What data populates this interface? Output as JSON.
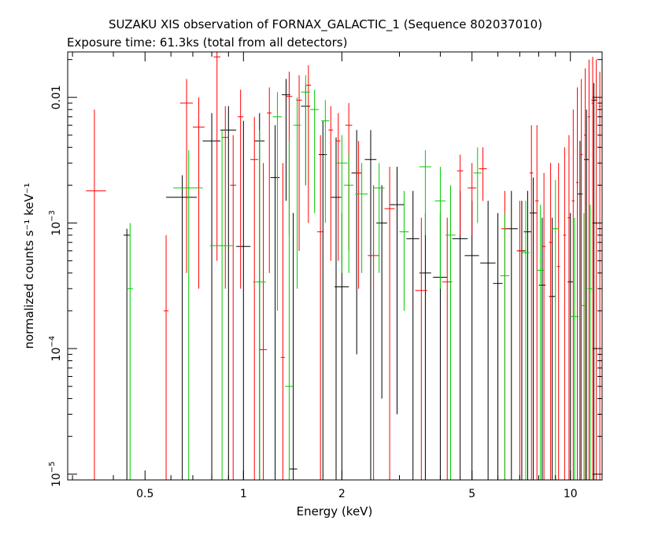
{
  "title_line1": "SUZAKU XIS observation of FORNAX_GALACTIC_1 (Sequence 802037010)",
  "title_line2": "Exposure time: 61.3ks (total from all detectors)",
  "chart_data": {
    "type": "scatter",
    "title": "SUZAKU XIS observation of FORNAX_GALACTIC_1 (Sequence 802037010)",
    "subtitle": "Exposure time: 61.3ks (total from all detectors)",
    "xlabel": "Energy (keV)",
    "ylabel": "normalized counts s⁻¹ keV⁻¹",
    "xscale": "log",
    "yscale": "log",
    "xlim": [
      0.29,
      12.5
    ],
    "ylim": [
      9e-06,
      0.023
    ],
    "xticks": [
      {
        "value": 0.5,
        "label": "0.5"
      },
      {
        "value": 1,
        "label": "1"
      },
      {
        "value": 2,
        "label": "2"
      },
      {
        "value": 5,
        "label": "5"
      },
      {
        "value": 10,
        "label": "10"
      }
    ],
    "yticks": [
      {
        "value": 1e-05,
        "base": "10",
        "exp": "−5"
      },
      {
        "value": 0.0001,
        "base": "10",
        "exp": "−4"
      },
      {
        "value": 0.001,
        "base": "10",
        "exp": "−3"
      },
      {
        "value": 0.01,
        "label": "0.01"
      }
    ],
    "grid": false,
    "series": [
      {
        "color": "#000000",
        "points": [
          {
            "x": 0.44,
            "xlo": 0.43,
            "xhi": 0.45,
            "y": 0.0008,
            "ylo": 9e-06,
            "yhi": 0.0009
          },
          {
            "x": 0.65,
            "xlo": 0.58,
            "xhi": 0.72,
            "y": 0.0016,
            "ylo": 9e-06,
            "yhi": 0.0024
          },
          {
            "x": 0.8,
            "xlo": 0.75,
            "xhi": 0.85,
            "y": 0.0045,
            "ylo": 9e-06,
            "yhi": 0.0075
          },
          {
            "x": 0.9,
            "xlo": 0.85,
            "xhi": 0.95,
            "y": 0.0055,
            "ylo": 9e-06,
            "yhi": 0.0085
          },
          {
            "x": 1.0,
            "xlo": 0.95,
            "xhi": 1.05,
            "y": 0.00065,
            "ylo": 9e-06,
            "yhi": 0.0065
          },
          {
            "x": 1.12,
            "xlo": 1.08,
            "xhi": 1.16,
            "y": 0.0045,
            "ylo": 9e-06,
            "yhi": 0.0075
          },
          {
            "x": 1.25,
            "xlo": 1.21,
            "xhi": 1.29,
            "y": 0.0023,
            "ylo": 9e-06,
            "yhi": 0.006
          },
          {
            "x": 1.35,
            "xlo": 1.31,
            "xhi": 1.39,
            "y": 0.0105,
            "ylo": 0.0015,
            "yhi": 0.014
          },
          {
            "x": 1.42,
            "xlo": 1.38,
            "xhi": 1.46,
            "y": 1.1e-05,
            "ylo": 9e-06,
            "yhi": 0.0012
          },
          {
            "x": 1.55,
            "xlo": 1.5,
            "xhi": 1.6,
            "y": 0.0085,
            "ylo": 0.002,
            "yhi": 0.0125
          },
          {
            "x": 1.75,
            "xlo": 1.7,
            "xhi": 1.8,
            "y": 0.0035,
            "ylo": 9e-06,
            "yhi": 0.0065
          },
          {
            "x": 1.92,
            "xlo": 1.85,
            "xhi": 1.99,
            "y": 0.0016,
            "ylo": 9e-06,
            "yhi": 0.0048
          },
          {
            "x": 2.0,
            "xlo": 1.9,
            "xhi": 2.1,
            "y": 0.00031,
            "ylo": 9e-06,
            "yhi": 0.0012
          },
          {
            "x": 2.22,
            "xlo": 2.14,
            "xhi": 2.3,
            "y": 0.0025,
            "ylo": 9e-05,
            "yhi": 0.0055
          },
          {
            "x": 2.45,
            "xlo": 2.35,
            "xhi": 2.55,
            "y": 0.0032,
            "ylo": 9e-06,
            "yhi": 0.0055
          },
          {
            "x": 2.65,
            "xlo": 2.55,
            "xhi": 2.75,
            "y": 0.001,
            "ylo": 4e-05,
            "yhi": 0.002
          },
          {
            "x": 2.95,
            "xlo": 2.8,
            "xhi": 3.1,
            "y": 0.0014,
            "ylo": 3e-05,
            "yhi": 0.0028
          },
          {
            "x": 3.3,
            "xlo": 3.15,
            "xhi": 3.45,
            "y": 0.00075,
            "ylo": 9e-06,
            "yhi": 0.0018
          },
          {
            "x": 3.6,
            "xlo": 3.45,
            "xhi": 3.75,
            "y": 0.0004,
            "ylo": 9e-06,
            "yhi": 0.0012
          },
          {
            "x": 4.0,
            "xlo": 3.8,
            "xhi": 4.2,
            "y": 0.00037,
            "ylo": 9e-06,
            "yhi": 0.0012
          },
          {
            "x": 4.6,
            "xlo": 4.35,
            "xhi": 4.85,
            "y": 0.00075,
            "ylo": 9e-06,
            "yhi": 0.0018
          },
          {
            "x": 5.0,
            "xlo": 4.75,
            "xhi": 5.25,
            "y": 0.00055,
            "ylo": 9e-06,
            "yhi": 0.0015
          },
          {
            "x": 5.6,
            "xlo": 5.3,
            "xhi": 5.9,
            "y": 0.00048,
            "ylo": 9e-06,
            "yhi": 0.0015
          },
          {
            "x": 6.0,
            "xlo": 5.8,
            "xhi": 6.2,
            "y": 0.00033,
            "ylo": 9e-06,
            "yhi": 0.0012
          },
          {
            "x": 6.6,
            "xlo": 6.3,
            "xhi": 6.9,
            "y": 0.0009,
            "ylo": 9e-06,
            "yhi": 0.0018
          },
          {
            "x": 7.1,
            "xlo": 6.9,
            "xhi": 7.3,
            "y": 0.0006,
            "ylo": 9e-06,
            "yhi": 0.0015
          },
          {
            "x": 7.4,
            "xlo": 7.2,
            "xhi": 7.6,
            "y": 0.00085,
            "ylo": 9e-06,
            "yhi": 0.0018
          },
          {
            "x": 7.7,
            "xlo": 7.5,
            "xhi": 7.9,
            "y": 0.0012,
            "ylo": 9e-06,
            "yhi": 0.0023
          },
          {
            "x": 8.2,
            "xlo": 8.0,
            "xhi": 8.4,
            "y": 0.00032,
            "ylo": 9e-06,
            "yhi": 0.0011
          },
          {
            "x": 8.8,
            "xlo": 8.6,
            "xhi": 9.0,
            "y": 0.00026,
            "ylo": 9e-06,
            "yhi": 0.0011
          },
          {
            "x": 10.0,
            "xlo": 9.8,
            "xhi": 10.2,
            "y": 0.00034,
            "ylo": 9e-06,
            "yhi": 0.0012
          },
          {
            "x": 10.7,
            "xlo": 10.5,
            "xhi": 10.9,
            "y": 0.0017,
            "ylo": 9e-06,
            "yhi": 0.0045
          },
          {
            "x": 11.2,
            "xlo": 11.0,
            "xhi": 11.4,
            "y": 0.0032,
            "ylo": 9e-06,
            "yhi": 0.008
          },
          {
            "x": 11.8,
            "xlo": 11.6,
            "xhi": 12.0,
            "y": 0.0095,
            "ylo": 9e-06,
            "yhi": 0.013
          }
        ]
      },
      {
        "color": "#ff0000",
        "points": [
          {
            "x": 0.35,
            "xlo": 0.33,
            "xhi": 0.38,
            "y": 0.0018,
            "ylo": 9e-06,
            "yhi": 0.008
          },
          {
            "x": 0.58,
            "xlo": 0.57,
            "xhi": 0.59,
            "y": 0.0002,
            "ylo": 9e-06,
            "yhi": 0.0008
          },
          {
            "x": 0.67,
            "xlo": 0.64,
            "xhi": 0.7,
            "y": 0.009,
            "ylo": 0.0004,
            "yhi": 0.014
          },
          {
            "x": 0.73,
            "xlo": 0.7,
            "xhi": 0.76,
            "y": 0.0058,
            "ylo": 0.0003,
            "yhi": 0.01
          },
          {
            "x": 0.83,
            "xlo": 0.81,
            "xhi": 0.85,
            "y": 0.021,
            "ylo": 0.0005,
            "yhi": 0.023
          },
          {
            "x": 0.88,
            "xlo": 0.86,
            "xhi": 0.9,
            "y": 0.0048,
            "ylo": 0.0003,
            "yhi": 0.0085
          },
          {
            "x": 0.93,
            "xlo": 0.91,
            "xhi": 0.95,
            "y": 0.002,
            "ylo": 9e-06,
            "yhi": 0.005
          },
          {
            "x": 0.98,
            "xlo": 0.96,
            "xhi": 1.0,
            "y": 0.007,
            "ylo": 0.0003,
            "yhi": 0.0115
          },
          {
            "x": 1.08,
            "xlo": 1.05,
            "xhi": 1.11,
            "y": 0.0032,
            "ylo": 9e-06,
            "yhi": 0.007
          },
          {
            "x": 1.15,
            "xlo": 1.12,
            "xhi": 1.18,
            "y": 9.8e-05,
            "ylo": 9e-06,
            "yhi": 0.003
          },
          {
            "x": 1.2,
            "xlo": 1.18,
            "xhi": 1.22,
            "y": 0.0075,
            "ylo": 0.0004,
            "yhi": 0.012
          },
          {
            "x": 1.32,
            "xlo": 1.3,
            "xhi": 1.34,
            "y": 8.5e-05,
            "ylo": 9e-06,
            "yhi": 0.003
          },
          {
            "x": 1.38,
            "xlo": 1.35,
            "xhi": 1.41,
            "y": 0.0102,
            "ylo": 0.0008,
            "yhi": 0.016
          },
          {
            "x": 1.48,
            "xlo": 1.45,
            "xhi": 1.51,
            "y": 0.0095,
            "ylo": 0.0006,
            "yhi": 0.015
          },
          {
            "x": 1.58,
            "xlo": 1.55,
            "xhi": 1.61,
            "y": 0.0125,
            "ylo": 0.001,
            "yhi": 0.018
          },
          {
            "x": 1.72,
            "xlo": 1.68,
            "xhi": 1.76,
            "y": 0.00085,
            "ylo": 9e-06,
            "yhi": 0.005
          },
          {
            "x": 1.85,
            "xlo": 1.82,
            "xhi": 1.88,
            "y": 0.0055,
            "ylo": 0.0005,
            "yhi": 0.0085
          },
          {
            "x": 1.95,
            "xlo": 1.92,
            "xhi": 1.98,
            "y": 0.0045,
            "ylo": 0.0005,
            "yhi": 0.0075
          },
          {
            "x": 2.1,
            "xlo": 2.05,
            "xhi": 2.15,
            "y": 0.006,
            "ylo": 0.0006,
            "yhi": 0.009
          },
          {
            "x": 2.25,
            "xlo": 2.2,
            "xhi": 2.3,
            "y": 0.0025,
            "ylo": 0.0003,
            "yhi": 0.0045
          },
          {
            "x": 2.5,
            "xlo": 2.4,
            "xhi": 2.6,
            "y": 0.00055,
            "ylo": 9e-06,
            "yhi": 0.002
          },
          {
            "x": 2.8,
            "xlo": 2.7,
            "xhi": 2.9,
            "y": 0.0013,
            "ylo": 9e-06,
            "yhi": 0.0028
          },
          {
            "x": 3.5,
            "xlo": 3.35,
            "xhi": 3.65,
            "y": 0.00029,
            "ylo": 9e-06,
            "yhi": 0.0011
          },
          {
            "x": 4.2,
            "xlo": 4.05,
            "xhi": 4.35,
            "y": 0.00034,
            "ylo": 9e-06,
            "yhi": 0.0011
          },
          {
            "x": 4.6,
            "xlo": 4.5,
            "xhi": 4.7,
            "y": 0.0026,
            "ylo": 0.0008,
            "yhi": 0.0035
          },
          {
            "x": 5.0,
            "xlo": 4.85,
            "xhi": 5.15,
            "y": 0.0019,
            "ylo": 0.0008,
            "yhi": 0.003
          },
          {
            "x": 5.4,
            "xlo": 5.25,
            "xhi": 5.55,
            "y": 0.0027,
            "ylo": 0.0015,
            "yhi": 0.004
          },
          {
            "x": 6.3,
            "xlo": 6.15,
            "xhi": 6.45,
            "y": 0.0009,
            "ylo": 9e-06,
            "yhi": 0.0018
          },
          {
            "x": 7.0,
            "xlo": 6.85,
            "xhi": 7.15,
            "y": 0.0006,
            "ylo": 9e-06,
            "yhi": 0.0015
          },
          {
            "x": 7.6,
            "xlo": 7.5,
            "xhi": 7.7,
            "y": 0.0025,
            "ylo": 9e-06,
            "yhi": 0.006
          },
          {
            "x": 7.9,
            "xlo": 7.8,
            "xhi": 8.0,
            "y": 0.0015,
            "ylo": 9e-06,
            "yhi": 0.006
          },
          {
            "x": 8.3,
            "xlo": 8.2,
            "xhi": 8.4,
            "y": 0.00065,
            "ylo": 9e-06,
            "yhi": 0.0025
          },
          {
            "x": 8.7,
            "xlo": 8.6,
            "xhi": 8.8,
            "y": 0.0007,
            "ylo": 9e-06,
            "yhi": 0.003
          },
          {
            "x": 9.2,
            "xlo": 9.1,
            "xhi": 9.3,
            "y": 0.00045,
            "ylo": 9e-06,
            "yhi": 0.003
          },
          {
            "x": 9.6,
            "xlo": 9.5,
            "xhi": 9.7,
            "y": 0.0008,
            "ylo": 9e-06,
            "yhi": 0.004
          },
          {
            "x": 9.9,
            "xlo": 9.8,
            "xhi": 10.0,
            "y": 0.0011,
            "ylo": 9e-06,
            "yhi": 0.005
          },
          {
            "x": 10.2,
            "xlo": 10.1,
            "xhi": 10.3,
            "y": 0.0015,
            "ylo": 9e-06,
            "yhi": 0.008
          },
          {
            "x": 10.5,
            "xlo": 10.4,
            "xhi": 10.6,
            "y": 0.0021,
            "ylo": 9e-06,
            "yhi": 0.012
          },
          {
            "x": 10.8,
            "xlo": 10.7,
            "xhi": 10.9,
            "y": 0.0035,
            "ylo": 9e-06,
            "yhi": 0.014
          },
          {
            "x": 11.1,
            "xlo": 11.0,
            "xhi": 11.2,
            "y": 0.005,
            "ylo": 9e-06,
            "yhi": 0.017
          },
          {
            "x": 11.4,
            "xlo": 11.3,
            "xhi": 11.5,
            "y": 0.007,
            "ylo": 9e-06,
            "yhi": 0.02
          },
          {
            "x": 11.7,
            "xlo": 11.6,
            "xhi": 11.8,
            "y": 0.009,
            "ylo": 9e-06,
            "yhi": 0.021
          },
          {
            "x": 12.0,
            "xlo": 11.9,
            "xhi": 12.1,
            "y": 0.0095,
            "ylo": 9e-06,
            "yhi": 0.02
          },
          {
            "x": 12.3,
            "xlo": 12.2,
            "xhi": 12.4,
            "y": 0.0085,
            "ylo": 9e-06,
            "yhi": 0.016
          }
        ]
      },
      {
        "color": "#00cc00",
        "points": [
          {
            "x": 0.45,
            "xlo": 0.44,
            "xhi": 0.46,
            "y": 0.0003,
            "ylo": 9e-06,
            "yhi": 0.001
          },
          {
            "x": 0.68,
            "xlo": 0.61,
            "xhi": 0.75,
            "y": 0.0019,
            "ylo": 9e-06,
            "yhi": 0.0038
          },
          {
            "x": 0.86,
            "xlo": 0.79,
            "xhi": 0.93,
            "y": 0.00066,
            "ylo": 9e-06,
            "yhi": 0.0055
          },
          {
            "x": 1.12,
            "xlo": 1.07,
            "xhi": 1.17,
            "y": 0.00034,
            "ylo": 9e-06,
            "yhi": 0.0055
          },
          {
            "x": 1.27,
            "xlo": 1.23,
            "xhi": 1.31,
            "y": 0.007,
            "ylo": 0.0002,
            "yhi": 0.011
          },
          {
            "x": 1.38,
            "xlo": 1.34,
            "xhi": 1.42,
            "y": 5e-05,
            "ylo": 9e-06,
            "yhi": 0.0045
          },
          {
            "x": 1.46,
            "xlo": 1.42,
            "xhi": 1.5,
            "y": 0.006,
            "ylo": 0.0003,
            "yhi": 0.01
          },
          {
            "x": 1.55,
            "xlo": 1.5,
            "xhi": 1.6,
            "y": 0.011,
            "ylo": 0.002,
            "yhi": 0.015
          },
          {
            "x": 1.65,
            "xlo": 1.6,
            "xhi": 1.7,
            "y": 0.008,
            "ylo": 0.0012,
            "yhi": 0.0115
          },
          {
            "x": 1.78,
            "xlo": 1.73,
            "xhi": 1.83,
            "y": 0.0065,
            "ylo": 0.001,
            "yhi": 0.0095
          },
          {
            "x": 2.0,
            "xlo": 1.92,
            "xhi": 2.08,
            "y": 0.003,
            "ylo": 0.0004,
            "yhi": 0.005
          },
          {
            "x": 2.1,
            "xlo": 2.03,
            "xhi": 2.17,
            "y": 0.002,
            "ylo": 0.0004,
            "yhi": 0.0035
          },
          {
            "x": 2.3,
            "xlo": 2.2,
            "xhi": 2.4,
            "y": 0.0017,
            "ylo": 0.0004,
            "yhi": 0.003
          },
          {
            "x": 2.6,
            "xlo": 2.5,
            "xhi": 2.7,
            "y": 0.0019,
            "ylo": 0.0004,
            "yhi": 0.003
          },
          {
            "x": 3.1,
            "xlo": 3.0,
            "xhi": 3.2,
            "y": 0.00085,
            "ylo": 0.0002,
            "yhi": 0.0018
          },
          {
            "x": 3.6,
            "xlo": 3.45,
            "xhi": 3.75,
            "y": 0.0028,
            "ylo": 0.0008,
            "yhi": 0.0038
          },
          {
            "x": 4.0,
            "xlo": 3.85,
            "xhi": 4.15,
            "y": 0.0015,
            "ylo": 0.0003,
            "yhi": 0.0028
          },
          {
            "x": 4.3,
            "xlo": 4.15,
            "xhi": 4.45,
            "y": 0.0008,
            "ylo": 9e-06,
            "yhi": 0.002
          },
          {
            "x": 5.2,
            "xlo": 5.05,
            "xhi": 5.35,
            "y": 0.0025,
            "ylo": 0.001,
            "yhi": 0.004
          },
          {
            "x": 6.3,
            "xlo": 6.1,
            "xhi": 6.5,
            "y": 0.00038,
            "ylo": 9e-06,
            "yhi": 0.0012
          },
          {
            "x": 7.3,
            "xlo": 7.1,
            "xhi": 7.5,
            "y": 0.00058,
            "ylo": 9e-06,
            "yhi": 0.0015
          },
          {
            "x": 8.1,
            "xlo": 7.9,
            "xhi": 8.3,
            "y": 0.00042,
            "ylo": 9e-06,
            "yhi": 0.0014
          },
          {
            "x": 9.0,
            "xlo": 8.8,
            "xhi": 9.2,
            "y": 0.0009,
            "ylo": 9e-06,
            "yhi": 0.0022
          },
          {
            "x": 10.3,
            "xlo": 10.0,
            "xhi": 10.6,
            "y": 0.00018,
            "ylo": 9e-06,
            "yhi": 0.0011
          },
          {
            "x": 11.0,
            "xlo": 10.8,
            "xhi": 11.2,
            "y": 0.00022,
            "ylo": 9e-06,
            "yhi": 0.0012
          },
          {
            "x": 11.5,
            "xlo": 11.3,
            "xhi": 11.7,
            "y": 0.0003,
            "ylo": 9e-06,
            "yhi": 0.0014
          }
        ]
      }
    ]
  }
}
